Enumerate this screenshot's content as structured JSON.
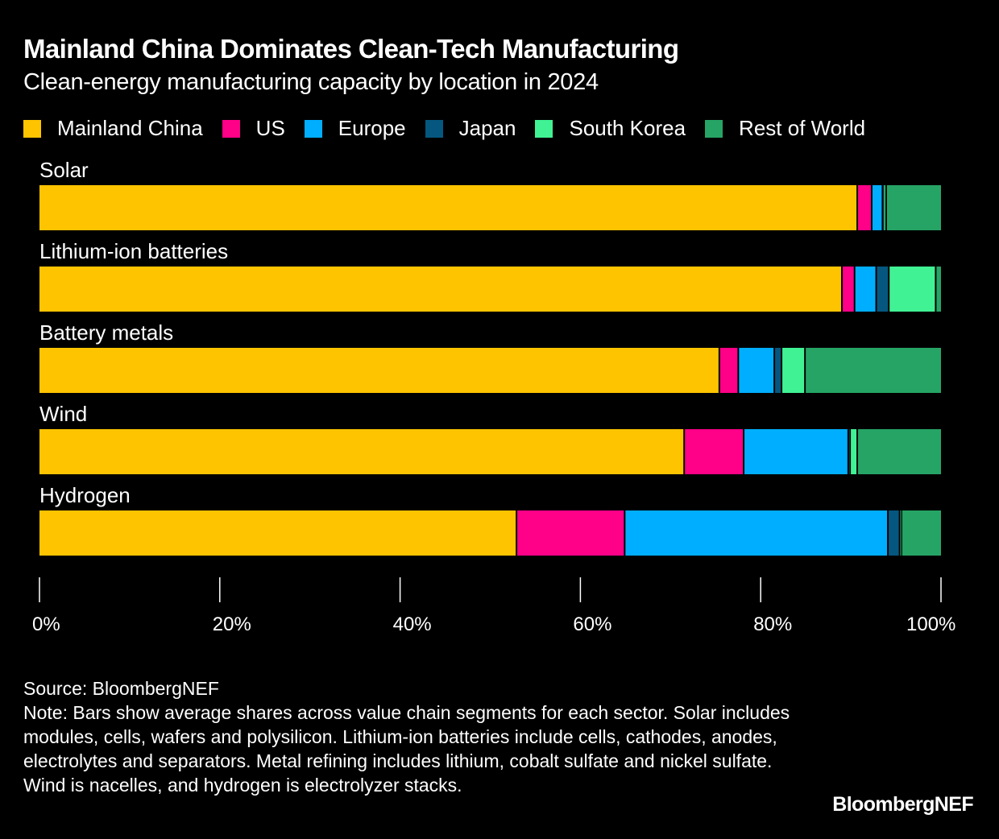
{
  "chart_data": {
    "type": "bar",
    "orientation": "horizontal",
    "stacked": true,
    "title": "Mainland China Dominates Clean-Tech Manufacturing",
    "subtitle": "Clean-energy manufacturing capacity by location in 2024",
    "categories": [
      "Solar",
      "Lithium-ion batteries",
      "Battery metals",
      "Wind",
      "Hydrogen"
    ],
    "series": [
      {
        "name": "Mainland China",
        "color": "#FFC400",
        "values": [
          90.8,
          89.1,
          75.5,
          71.6,
          53.0
        ]
      },
      {
        "name": "US",
        "color": "#FF0088",
        "values": [
          1.6,
          1.4,
          2.1,
          6.6,
          12.0
        ]
      },
      {
        "name": "Europe",
        "color": "#00AEFF",
        "values": [
          1.2,
          2.4,
          4.0,
          11.6,
          29.2
        ]
      },
      {
        "name": "Japan",
        "color": "#05577F",
        "values": [
          0.1,
          1.4,
          0.8,
          0.2,
          1.3
        ]
      },
      {
        "name": "South Korea",
        "color": "#40F294",
        "values": [
          0.3,
          5.2,
          2.6,
          0.8,
          0.2
        ]
      },
      {
        "name": "Rest of World",
        "color": "#26A465",
        "values": [
          6.0,
          0.5,
          15.0,
          9.2,
          4.3
        ]
      }
    ],
    "xlim": [
      0,
      100
    ],
    "xticks": [
      0,
      20,
      40,
      60,
      80,
      100
    ],
    "xtick_labels": [
      "0%",
      "20%",
      "40%",
      "60%",
      "80%",
      "100%"
    ],
    "xlabel": "",
    "ylabel": "",
    "grid": false,
    "legend_position": "top-left"
  },
  "footer": {
    "source": "Source: BloombergNEF",
    "note": "Note: Bars show average shares across value chain segments for each sector. Solar includes modules, cells, wafers and polysilicon. Lithium-ion batteries include cells, cathodes, anodes, electrolytes and separators. Metal refining includes lithium, cobalt sulfate and nickel sulfate. Wind is nacelles, and hydrogen is electrolyzer stacks.",
    "brand": "BloombergNEF"
  }
}
